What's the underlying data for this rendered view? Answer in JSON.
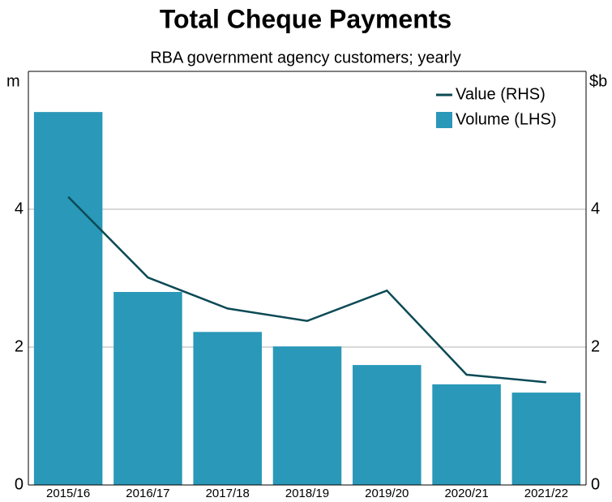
{
  "chart_data": {
    "type": "bar_line",
    "title": "Total Cheque Payments",
    "subtitle": "RBA government agency customers; yearly",
    "y_label": "m",
    "y2_label": "$b",
    "categories": [
      "2015/16",
      "2016/17",
      "2017/18",
      "2018/19",
      "2019/20",
      "2020/21",
      "2021/22"
    ],
    "series": [
      {
        "name": "Value (RHS)",
        "type": "line",
        "axis": "y2",
        "color": "#0b4a55",
        "values": [
          4.18,
          3.01,
          2.56,
          2.38,
          2.82,
          1.6,
          1.49
        ]
      },
      {
        "name": "Volume (LHS)",
        "type": "bar",
        "color": "#2a98b8",
        "values": [
          5.41,
          2.8,
          2.22,
          2.01,
          1.74,
          1.46,
          1.34
        ]
      }
    ],
    "ylim": [
      0,
      6
    ],
    "yticks": [
      0,
      2,
      4
    ],
    "y2lim": [
      0,
      6
    ],
    "y2ticks": [
      0,
      2,
      4
    ],
    "grid": true,
    "legend": "top-right"
  }
}
